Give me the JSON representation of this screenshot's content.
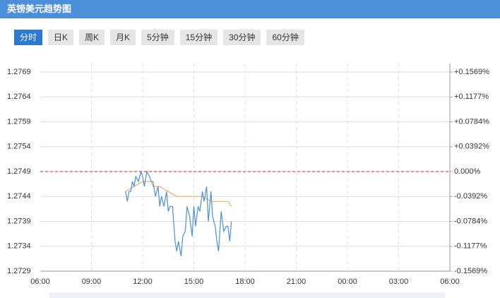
{
  "header": {
    "title": "英镑美元趋势图"
  },
  "tabs": [
    "分时",
    "日K",
    "周K",
    "月K",
    "5分钟",
    "15分钟",
    "30分钟",
    "60分钟"
  ],
  "selected_tab": 0,
  "chart_data": {
    "type": "line",
    "xlim": [
      6,
      30
    ],
    "xticks": [
      {
        "value": 6,
        "label": "06:00"
      },
      {
        "value": 9,
        "label": "09:00"
      },
      {
        "value": 12,
        "label": "12:00"
      },
      {
        "value": 15,
        "label": "15:00"
      },
      {
        "value": 18,
        "label": "18:00"
      },
      {
        "value": 21,
        "label": "21:00"
      },
      {
        "value": 24,
        "label": "00:00"
      },
      {
        "value": 27,
        "label": "03:00"
      },
      {
        "value": 30,
        "label": "06:00"
      }
    ],
    "ylim": [
      1.2729,
      1.2769
    ],
    "yticks": [
      1.2769,
      1.2764,
      1.2759,
      1.2754,
      1.2749,
      1.2744,
      1.2739,
      1.2734,
      1.2729
    ],
    "y2lim": [
      -0.1569,
      0.1569
    ],
    "y2ticks": [
      {
        "value": 0.1569,
        "label": "+0.1569%"
      },
      {
        "value": 0.1177,
        "label": "+0.1177%"
      },
      {
        "value": 0.0784,
        "label": "+0.0784%"
      },
      {
        "value": 0.0392,
        "label": "+0.0392%"
      },
      {
        "value": 0,
        "label": "0.000%"
      },
      {
        "value": -0.0392,
        "label": "-0.0392%"
      },
      {
        "value": -0.0784,
        "label": "-0.0784%"
      },
      {
        "value": -0.1177,
        "label": "-0.1177%"
      },
      {
        "value": -0.1569,
        "label": "-0.1569%"
      }
    ],
    "y2tick_colors": {
      "positive": "#e02020",
      "zero": "#999999",
      "negative": "#1a8a1a"
    },
    "reference_line": 1.2749,
    "reference_color": "#e02020",
    "grid": true,
    "series": [
      {
        "color": "#4a8fd8",
        "x": [
          11.0,
          11.1,
          11.2,
          11.3,
          11.4,
          11.5,
          11.6,
          11.75,
          11.9,
          12.0,
          12.1,
          12.25,
          12.4,
          12.5,
          12.6,
          12.75,
          12.9,
          13.0,
          13.1,
          13.25,
          13.4,
          13.5,
          13.6,
          13.75,
          13.9,
          14.0,
          14.1,
          14.25,
          14.35,
          14.5,
          14.6,
          14.75,
          14.9,
          15.0,
          15.1,
          15.25,
          15.35,
          15.5,
          15.6,
          15.75,
          15.85,
          16.0,
          16.1,
          16.25,
          16.35,
          16.45,
          16.6,
          16.75,
          16.9,
          17.0,
          17.1,
          17.2
        ],
        "values": [
          1.2745,
          1.2743,
          1.2745,
          1.2745,
          1.2747,
          1.2746,
          1.2748,
          1.2747,
          1.2749,
          1.2748,
          1.2746,
          1.2749,
          1.2748,
          1.2747,
          1.2747,
          1.2744,
          1.2746,
          1.2742,
          1.2744,
          1.2742,
          1.2745,
          1.2741,
          1.2742,
          1.2742,
          1.2735,
          1.2733,
          1.2735,
          1.2732,
          1.2736,
          1.2737,
          1.2742,
          1.274,
          1.2736,
          1.2742,
          1.2738,
          1.2742,
          1.2741,
          1.2745,
          1.2743,
          1.2746,
          1.2739,
          1.2745,
          1.274,
          1.2738,
          1.2735,
          1.2733,
          1.2741,
          1.2737,
          1.2738,
          1.2738,
          1.2735,
          1.2739
        ]
      },
      {
        "color": "#f0b060",
        "x": [
          11.0,
          11.5,
          12.0,
          12.5,
          12.6,
          13.0,
          13.5,
          14.0,
          14.5,
          15.0,
          15.5,
          16.0,
          16.5,
          17.0,
          17.2
        ],
        "values": [
          1.2745,
          1.2746,
          1.2747,
          1.2747,
          1.2746,
          1.2746,
          1.2745,
          1.2744,
          1.2744,
          1.2744,
          1.2744,
          1.2743,
          1.2743,
          1.2743,
          1.2742
        ]
      }
    ]
  }
}
